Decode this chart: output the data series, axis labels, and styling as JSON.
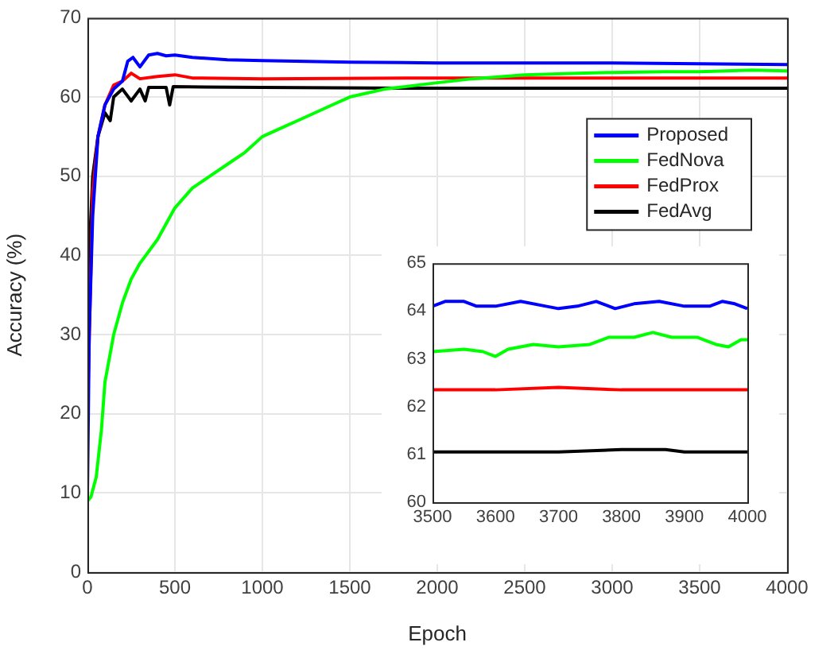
{
  "chart_data": [
    {
      "type": "line",
      "xlabel": "Epoch",
      "ylabel": "Accuracy (%)",
      "xlim": [
        0,
        4000
      ],
      "xticks": [
        0,
        500,
        1000,
        1500,
        2000,
        2500,
        3000,
        3500,
        4000
      ],
      "ylim": [
        0,
        70
      ],
      "yticks": [
        0,
        10,
        20,
        30,
        40,
        50,
        60,
        70
      ],
      "grid": true,
      "legend": "top right",
      "line_style": "solid",
      "marker": "none",
      "series": [
        {
          "name": "Proposed",
          "color": "#0000ff",
          "x": [
            0,
            10,
            30,
            60,
            100,
            150,
            200,
            230,
            260,
            300,
            350,
            400,
            450,
            500,
            600,
            800,
            1000,
            1500,
            2000,
            2500,
            3000,
            3500,
            4000
          ],
          "values": [
            10,
            30,
            45,
            55,
            59,
            61,
            62,
            64.5,
            65,
            63.8,
            65.3,
            65.5,
            65.2,
            65.3,
            65,
            64.7,
            64.6,
            64.4,
            64.3,
            64.3,
            64.3,
            64.2,
            64.1
          ]
        },
        {
          "name": "FedNova",
          "color": "#00ff00",
          "x": [
            0,
            20,
            50,
            80,
            100,
            150,
            200,
            250,
            300,
            400,
            500,
            600,
            700,
            800,
            900,
            1000,
            1100,
            1200,
            1300,
            1400,
            1500,
            1700,
            2000,
            2200,
            2500,
            2800,
            3000,
            3300,
            3500,
            3800,
            4000
          ],
          "values": [
            9,
            9.5,
            12,
            18,
            24,
            30,
            34,
            37,
            39,
            42,
            46,
            48.5,
            50,
            51.5,
            53,
            55,
            56,
            57,
            58,
            59,
            60,
            61,
            61.8,
            62.3,
            62.8,
            63,
            63.1,
            63.2,
            63.2,
            63.4,
            63.3
          ]
        },
        {
          "name": "FedProx",
          "color": "#ff0000",
          "x": [
            0,
            30,
            60,
            100,
            150,
            200,
            250,
            300,
            400,
            500,
            600,
            1000,
            2000,
            3000,
            4000
          ],
          "values": [
            20,
            48,
            55,
            59,
            61.5,
            62,
            63,
            62.3,
            62.6,
            62.8,
            62.4,
            62.3,
            62.4,
            62.4,
            62.4
          ]
        },
        {
          "name": "FedAvg",
          "color": "#000000",
          "x": [
            0,
            10,
            30,
            60,
            100,
            130,
            150,
            200,
            250,
            300,
            330,
            350,
            450,
            470,
            490,
            1000,
            2000,
            3000,
            4000
          ],
          "values": [
            28,
            40,
            50,
            55,
            58,
            57,
            60,
            61,
            59.5,
            61,
            59.5,
            61.2,
            61.2,
            59,
            61.3,
            61.2,
            61.1,
            61.1,
            61.1
          ]
        }
      ]
    },
    {
      "type": "line",
      "xlim": [
        3500,
        4000
      ],
      "xticks": [
        3500,
        3600,
        3700,
        3800,
        3900,
        4000
      ],
      "ylim": [
        60,
        65
      ],
      "yticks": [
        60,
        61,
        62,
        63,
        64,
        65
      ],
      "line_style": "solid",
      "marker": "none",
      "series": [
        {
          "color": "#0000ff",
          "x": [
            3500,
            3520,
            3550,
            3570,
            3600,
            3640,
            3680,
            3700,
            3730,
            3760,
            3790,
            3820,
            3860,
            3900,
            3940,
            3960,
            3980,
            4000
          ],
          "values": [
            64.1,
            64.2,
            64.2,
            64.1,
            64.1,
            64.2,
            64.1,
            64.05,
            64.1,
            64.2,
            64.05,
            64.15,
            64.2,
            64.1,
            64.1,
            64.2,
            64.15,
            64.05
          ]
        },
        {
          "color": "#00ff00",
          "x": [
            3500,
            3550,
            3580,
            3600,
            3620,
            3660,
            3700,
            3750,
            3780,
            3820,
            3850,
            3880,
            3920,
            3950,
            3970,
            3990,
            4000
          ],
          "values": [
            63.15,
            63.2,
            63.15,
            63.05,
            63.2,
            63.3,
            63.25,
            63.3,
            63.45,
            63.45,
            63.55,
            63.45,
            63.45,
            63.3,
            63.25,
            63.4,
            63.4
          ]
        },
        {
          "color": "#ff0000",
          "x": [
            3500,
            3550,
            3600,
            3700,
            3800,
            3900,
            4000
          ],
          "values": [
            62.35,
            62.35,
            62.35,
            62.4,
            62.35,
            62.35,
            62.35
          ]
        },
        {
          "color": "#000000",
          "x": [
            3500,
            3600,
            3700,
            3800,
            3870,
            3900,
            4000
          ],
          "values": [
            61.05,
            61.05,
            61.05,
            61.1,
            61.1,
            61.05,
            61.05
          ]
        }
      ]
    }
  ]
}
